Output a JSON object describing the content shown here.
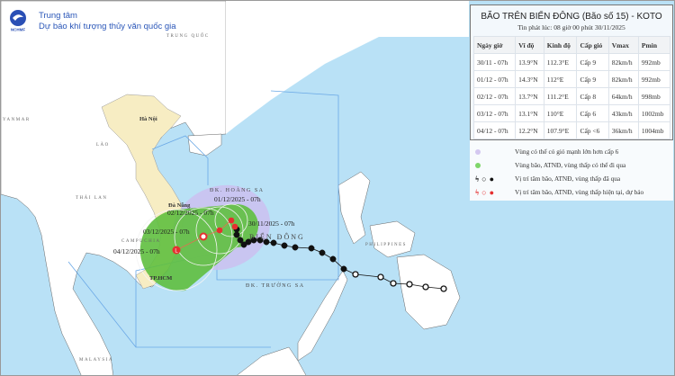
{
  "header": {
    "org_line1": "Trung tâm",
    "org_line2": "Dự báo khí tượng thủy văn quốc gia",
    "logo_text": "NCHMF"
  },
  "info": {
    "title": "BÃO TRÊN BIỂN ĐÔNG (Bão số 15) - KOTO",
    "issued": "Tin phát lúc: 08 giờ 00 phút 30/11/2025",
    "columns": [
      "Ngày giờ",
      "Vĩ độ",
      "Kinh độ",
      "Cấp gió",
      "Vmax",
      "Pmin"
    ],
    "rows": [
      [
        "30/11 - 07h",
        "13.9°N",
        "112.3°E",
        "Cấp 9",
        "82km/h",
        "992mb"
      ],
      [
        "01/12 - 07h",
        "14.3°N",
        "112°E",
        "Cấp 9",
        "82km/h",
        "992mb"
      ],
      [
        "02/12 - 07h",
        "13.7°N",
        "111.2°E",
        "Cấp 8",
        "64km/h",
        "998mb"
      ],
      [
        "03/12 - 07h",
        "13.1°N",
        "110°E",
        "Cấp 6",
        "43km/h",
        "1002mb"
      ],
      [
        "04/12 - 07h",
        "12.2°N",
        "107.9°E",
        "Cấp <6",
        "36km/h",
        "1004mb"
      ]
    ]
  },
  "legend": [
    {
      "text": "Vùng có thể có gió mạnh lớn hơn cấp 6",
      "color": "#d4c8f0"
    },
    {
      "text": "Vùng bão, ATNĐ, vùng thấp có thể đi qua",
      "color": "#7fd66a"
    },
    {
      "text": "Vị trí tâm bão, ATNĐ, vùng thấp đã qua",
      "color": "#111111"
    },
    {
      "text": "Vị trí tâm bão, ATNĐ, vùng thấp hiện tại, dự báo",
      "color": "#e53030"
    }
  ],
  "map": {
    "labels": {
      "china": "TRUNG QUỐC",
      "myanmar": "YANMAR",
      "laos": "LÀO",
      "hanoi": "Hà Nội",
      "thailand": "THÁI LAN",
      "cambodia": "CAMPUCHIA",
      "danang": "Đà Nẵng",
      "hcm": "TP.HCM",
      "malaysia": "MALAYSIA",
      "paracel": "ĐK. HOÀNG SA",
      "spratly": "ĐK. TRƯỜNG SA",
      "east_sea": "BIỂN ĐÔNG",
      "philippines": "PHILIPPINES"
    },
    "time_labels": [
      "30/11/2025 - 07h",
      "01/12/2025 - 07h",
      "02/12/2025 - 07h",
      "03/12/2025 - 07h",
      "04/12/2025 - 07h"
    ],
    "colors": {
      "sea": "#b9e1f6",
      "land": "#ffffff",
      "vietnam": "#f7edc3",
      "wind_zone": "#cbbff0",
      "storm_zone": "#5fbf3f",
      "track_past": "#111111",
      "track_forecast": "#e53030"
    }
  }
}
